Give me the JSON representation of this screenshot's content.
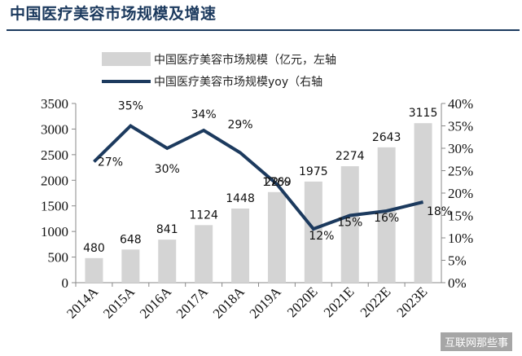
{
  "header": {
    "title": "中国医疗美容市场规模及增速"
  },
  "watermark": {
    "text": "互联网那些事"
  },
  "chart_data": {
    "type": "bar",
    "categories": [
      "2014A",
      "2015A",
      "2016A",
      "2017A",
      "2018A",
      "2019A",
      "2020E",
      "2021E",
      "2022E",
      "2023E"
    ],
    "series": [
      {
        "name": "中国医疗美容市场规模（亿元，左轴",
        "type": "bar",
        "axis": "left",
        "color": "#d4d4d4",
        "values": [
          480,
          648,
          841,
          1124,
          1448,
          1769,
          1975,
          2274,
          2643,
          3115
        ],
        "labels": [
          "480",
          "648",
          "841",
          "1124",
          "1448",
          "1769",
          "1975",
          "2274",
          "2643",
          "3115"
        ]
      },
      {
        "name": "中国医疗美容市场规模yoy（右轴",
        "type": "line",
        "axis": "right",
        "color": "#1c3a5e",
        "values": [
          27,
          35,
          30,
          34,
          29,
          22,
          12,
          15,
          16,
          18
        ],
        "labels": [
          "27%",
          "35%",
          "30%",
          "34%",
          "29%",
          "22%",
          "12%",
          "15%",
          "16%",
          "18%"
        ]
      }
    ],
    "y_left": {
      "ticks": [
        "0",
        "500",
        "1000",
        "1500",
        "2000",
        "2500",
        "3000",
        "3500"
      ],
      "ylim": [
        0,
        3500
      ]
    },
    "y_right": {
      "ticks": [
        "0%",
        "5%",
        "10%",
        "15%",
        "20%",
        "25%",
        "30%",
        "35%",
        "40%"
      ],
      "ylim": [
        0,
        40
      ]
    },
    "legend_position": "top",
    "grid": false
  }
}
